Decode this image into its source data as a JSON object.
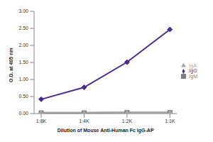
{
  "chart_data": {
    "type": "line",
    "x_label": "Dilution of Mouse Anti-Human Fc IgG-AP",
    "y_label": "O.D. at 405 nm",
    "categories": [
      "1:8K",
      "1:4K",
      "1:2K",
      "1:1K"
    ],
    "series": [
      {
        "name": "IgG",
        "color": "#4b2a8c",
        "marker": "diamond",
        "values": [
          0.42,
          0.77,
          1.51,
          2.47
        ]
      },
      {
        "name": "IgM",
        "color": "#7f7f7f",
        "marker": "square",
        "values": [
          0.02,
          0.02,
          0.03,
          0.03
        ]
      },
      {
        "name": "IgA",
        "color": "#a6a6a6",
        "marker": "triangle",
        "values": [
          0.03,
          0.03,
          0.04,
          0.04
        ]
      }
    ],
    "ylim": [
      0,
      3
    ],
    "yticks": [
      {
        "value": 0,
        "label": "0.00"
      },
      {
        "value": 0.5,
        "label": "0.50"
      },
      {
        "value": 1,
        "label": "1.00"
      },
      {
        "value": 1.5,
        "label": "1.50"
      },
      {
        "value": 2,
        "label": "2.00"
      },
      {
        "value": 2.5,
        "label": "2.50"
      },
      {
        "value": 3,
        "label": "3.00"
      }
    ],
    "grid": false,
    "legend": "right"
  }
}
